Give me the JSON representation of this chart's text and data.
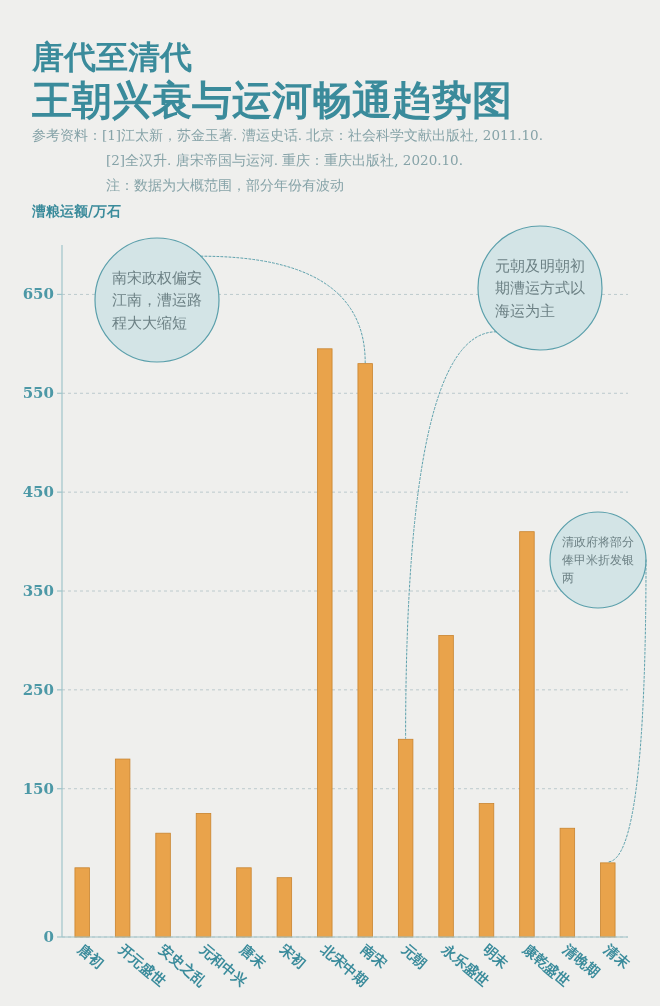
{
  "chart_data": {
    "type": "bar",
    "subtitle": "唐代至清代",
    "title": "王朝兴衰与运河畅通趋势图",
    "ylabel": "漕粮运额/万石",
    "annotations": [
      "参考资料：[1]江太新，苏金玉著. 漕运史话. 北京：社会科学文献出版社, 2011.10.",
      "[2]全汉升. 唐宋帝国与运河. 重庆：重庆出版社, 2020.10.",
      "注：数据为大概范围，部分年份有波动",
      {
        "text": "南宋政权偏安江南，漕运路程大大缩短",
        "x": "南宋",
        "y": 580
      },
      {
        "text": "元朝及明朝初期漕运方式以海运为主",
        "x": "元朝",
        "y": 200
      },
      {
        "text": "清政府将部分俸甲米折发银两",
        "x": "清末",
        "y": 75
      }
    ],
    "categories": [
      "唐初",
      "开元盛世",
      "安史之乱",
      "元和中兴",
      "唐末",
      "宋初",
      "北宋中期",
      "南宋",
      "元朝",
      "永乐盛世",
      "明末",
      "康乾盛世",
      "清晚期",
      "清末"
    ],
    "values": [
      70,
      180,
      105,
      125,
      70,
      60,
      595,
      580,
      200,
      305,
      135,
      410,
      110,
      75
    ],
    "color": "#e9a34b",
    "ylim": [
      0,
      700
    ],
    "yticks": [
      0,
      150,
      250,
      350,
      450,
      550,
      650
    ],
    "grid": "y"
  }
}
